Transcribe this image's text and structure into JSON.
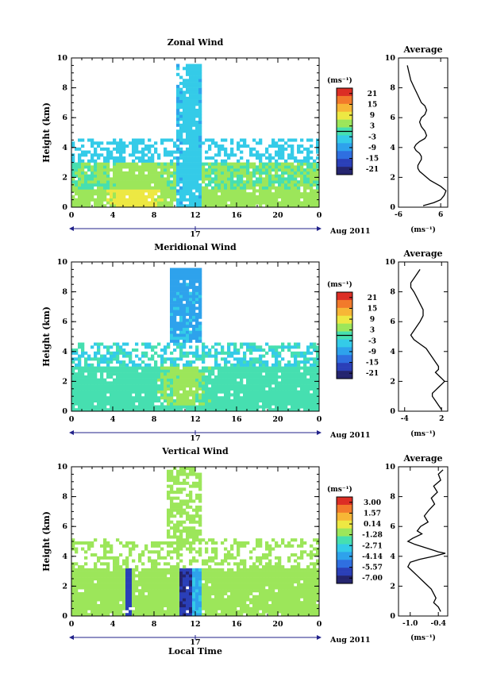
{
  "chart_data": [
    {
      "type": "heatmap",
      "title": "Zonal Wind",
      "xlabel": "",
      "ylabel": "Height (km)",
      "xlim": [
        0,
        24
      ],
      "ylim": [
        0,
        10
      ],
      "xticks": [
        "0",
        "4",
        "8",
        "12",
        "16",
        "20",
        "0"
      ],
      "yticks": [
        "0",
        "2",
        "4",
        "6",
        "8",
        "10"
      ],
      "date_axis": {
        "day": "17",
        "month_year": "Aug 2011"
      },
      "colorbar": {
        "unit": "(ms⁻¹)",
        "ticks": [
          "21",
          "15",
          "9",
          "3",
          "-3",
          "-9",
          "-15",
          "-21"
        ],
        "range": [
          -24,
          24
        ]
      },
      "profile": {
        "title": "Average",
        "xlabel": "(ms⁻¹)",
        "xticks": [
          "-6",
          "6"
        ],
        "xlim": [
          -6,
          8
        ],
        "x": [
          -3.5,
          -3.0,
          -2.5,
          -1.5,
          -0.5,
          0.5,
          1.5,
          2.0,
          1.5,
          0.5,
          0.0,
          0.5,
          1.5,
          2.0,
          1.5,
          0.0,
          -1.0,
          -1.5,
          -1.0,
          0.0,
          0.5,
          0.5,
          0.0,
          -0.5,
          -0.5,
          0.0,
          1.0,
          2.0,
          3.0,
          4.5,
          6.0,
          7.5,
          7.0,
          6.0,
          4.0,
          1.0
        ],
        "y": [
          9.5,
          9.0,
          8.5,
          8.0,
          7.5,
          7.0,
          6.8,
          6.5,
          6.2,
          6.0,
          5.7,
          5.4,
          5.1,
          4.8,
          4.6,
          4.4,
          4.2,
          4.0,
          3.8,
          3.6,
          3.4,
          3.2,
          3.0,
          2.8,
          2.6,
          2.4,
          2.2,
          2.0,
          1.8,
          1.6,
          1.4,
          1.1,
          0.8,
          0.5,
          0.3,
          0.1
        ]
      }
    },
    {
      "type": "heatmap",
      "title": "Meridional Wind",
      "xlabel": "",
      "ylabel": "Height (km)",
      "xlim": [
        0,
        24
      ],
      "ylim": [
        0,
        10
      ],
      "xticks": [
        "0",
        "4",
        "8",
        "12",
        "16",
        "20",
        "0"
      ],
      "yticks": [
        "0",
        "2",
        "4",
        "6",
        "8",
        "10"
      ],
      "date_axis": {
        "day": "17",
        "month_year": "Aug 2011"
      },
      "colorbar": {
        "unit": "(ms⁻¹)",
        "ticks": [
          "21",
          "15",
          "9",
          "3",
          "-3",
          "-9",
          "-15",
          "-21"
        ],
        "range": [
          -24,
          24
        ]
      },
      "profile": {
        "title": "Average",
        "xlabel": "(ms⁻¹)",
        "xticks": [
          "-4",
          "2"
        ],
        "xlim": [
          -5,
          3
        ],
        "x": [
          -1.5,
          -2.0,
          -2.5,
          -3.0,
          -3.0,
          -2.5,
          -2.0,
          -1.5,
          -1.0,
          -1.0,
          -1.5,
          -2.0,
          -2.5,
          -3.0,
          -2.5,
          -1.5,
          -0.5,
          0.0,
          0.5,
          1.0,
          1.5,
          1.5,
          1.0,
          1.5,
          2.0,
          2.5,
          2.0,
          1.5,
          1.0,
          0.5,
          0.5,
          1.0,
          1.5,
          2.0
        ],
        "y": [
          9.5,
          9.2,
          8.9,
          8.6,
          8.3,
          8.0,
          7.6,
          7.2,
          6.8,
          6.4,
          6.0,
          5.7,
          5.4,
          5.1,
          4.8,
          4.5,
          4.2,
          3.9,
          3.6,
          3.3,
          3.0,
          2.8,
          2.6,
          2.4,
          2.2,
          2.0,
          1.8,
          1.6,
          1.4,
          1.2,
          1.0,
          0.7,
          0.4,
          0.1
        ]
      }
    },
    {
      "type": "heatmap",
      "title": "Vertical Wind",
      "xlabel": "Local Time",
      "ylabel": "Height (km)",
      "xlim": [
        0,
        24
      ],
      "ylim": [
        0,
        10
      ],
      "xticks": [
        "0",
        "4",
        "8",
        "12",
        "16",
        "20",
        "0"
      ],
      "yticks": [
        "0",
        "2",
        "4",
        "6",
        "8",
        "10"
      ],
      "date_axis": {
        "day": "17",
        "month_year": "Aug 2011"
      },
      "colorbar": {
        "unit": "(ms⁻¹)",
        "ticks": [
          "3.00",
          "1.57",
          "0.14",
          "-1.28",
          "-2.71",
          "-4.14",
          "-5.57",
          "-7.00"
        ],
        "range": [
          -7.71,
          3.71
        ]
      },
      "profile": {
        "title": "Average",
        "xlabel": "(ms⁻¹)",
        "xticks": [
          "-1.0",
          "-0.4"
        ],
        "xlim": [
          -1.25,
          -0.2
        ],
        "x": [
          -0.3,
          -0.4,
          -0.35,
          -0.5,
          -0.42,
          -0.55,
          -0.48,
          -0.6,
          -0.7,
          -0.62,
          -0.78,
          -0.85,
          -0.75,
          -0.95,
          -1.05,
          -0.9,
          -0.7,
          -0.5,
          -0.4,
          -0.25,
          -0.5,
          -0.8,
          -1.0,
          -1.05,
          -0.95,
          -0.85,
          -0.75,
          -0.65,
          -0.55,
          -0.5,
          -0.45,
          -0.5,
          -0.4,
          -0.35
        ],
        "y": [
          9.8,
          9.5,
          9.1,
          8.7,
          8.3,
          7.9,
          7.5,
          7.1,
          6.7,
          6.3,
          6.0,
          5.7,
          5.5,
          5.2,
          5.0,
          4.8,
          4.6,
          4.4,
          4.3,
          4.2,
          4.0,
          3.8,
          3.6,
          3.3,
          3.0,
          2.7,
          2.4,
          2.1,
          1.8,
          1.5,
          1.2,
          0.9,
          0.6,
          0.3
        ]
      }
    }
  ]
}
